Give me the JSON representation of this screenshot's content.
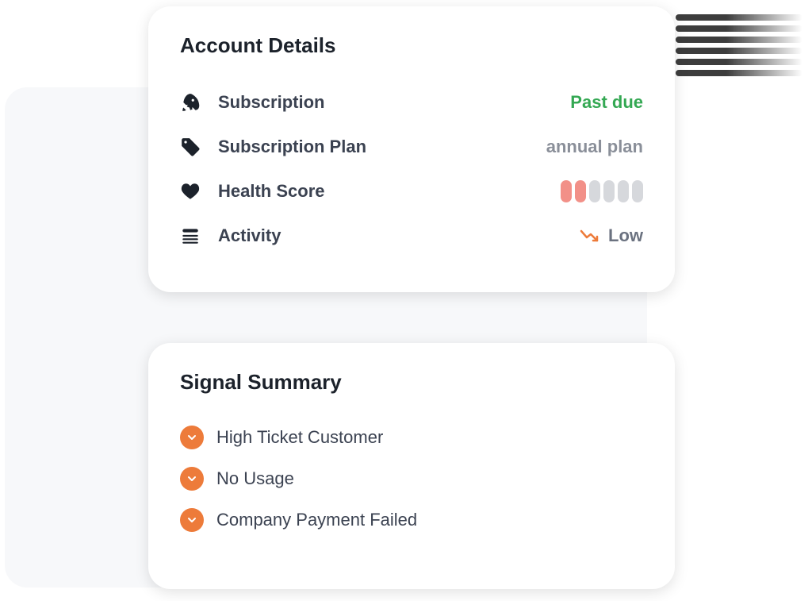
{
  "colors": {
    "text_primary": "#1c222b",
    "text_secondary": "#3b4251",
    "text_muted": "#8a8f99",
    "accent_green": "#34a853",
    "accent_orange": "#ed7b3a",
    "health_filled": "#f29088",
    "health_empty": "#d6d8dc",
    "backplate": "#f7f8fa",
    "card_bg": "#ffffff"
  },
  "account_details": {
    "title": "Account Details",
    "rows": [
      {
        "icon": "rocket-icon",
        "label": "Subscription",
        "value": "Past due",
        "value_style": "green"
      },
      {
        "icon": "tag-icon",
        "label": "Subscription Plan",
        "value": "annual plan",
        "value_style": "gray"
      },
      {
        "icon": "heart-icon",
        "label": "Health Score",
        "value_style": "health",
        "health": {
          "filled": 2,
          "total": 6
        }
      },
      {
        "icon": "list-icon",
        "label": "Activity",
        "value": "Low",
        "value_style": "low"
      }
    ]
  },
  "signal_summary": {
    "title": "Signal Summary",
    "badge_color": "#ed7b3a",
    "items": [
      {
        "label": "High Ticket Customer"
      },
      {
        "label": "No Usage"
      },
      {
        "label": "Company Payment Failed"
      }
    ]
  }
}
